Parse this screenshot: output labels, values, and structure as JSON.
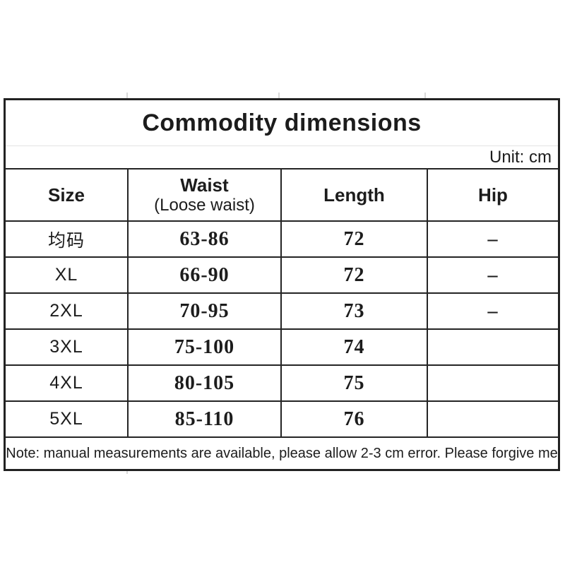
{
  "title": "Commodity dimensions",
  "unit_label": "Unit: cm",
  "table": {
    "headers": {
      "size": "Size",
      "waist_line1": "Waist",
      "waist_line2": "(Loose waist)",
      "length": "Length",
      "hip": "Hip"
    },
    "rows": [
      {
        "size": "均码",
        "waist": "63-86",
        "length": "72",
        "hip": "–"
      },
      {
        "size": "XL",
        "waist": "66-90",
        "length": "72",
        "hip": "–"
      },
      {
        "size": "2XL",
        "waist": "70-95",
        "length": "73",
        "hip": "–"
      },
      {
        "size": "3XL",
        "waist": "75-100",
        "length": "74",
        "hip": ""
      },
      {
        "size": "4XL",
        "waist": "80-105",
        "length": "75",
        "hip": ""
      },
      {
        "size": "5XL",
        "waist": "85-110",
        "length": "76",
        "hip": ""
      }
    ]
  },
  "note": "Note: manual measurements are available, please allow 2-3 cm error. Please forgive me"
}
